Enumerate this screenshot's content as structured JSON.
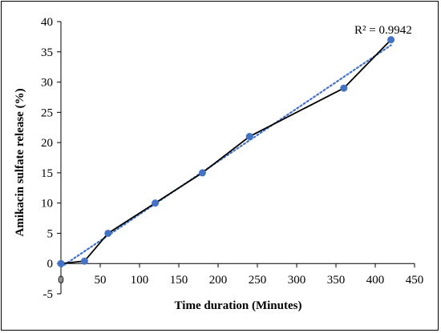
{
  "chart_data": {
    "type": "line",
    "title": "",
    "xlabel": "Time duration (Minutes)",
    "ylabel": "Amikacin sulfate release (%)",
    "xlim": [
      0,
      450
    ],
    "ylim": [
      -5,
      40
    ],
    "xticks": [
      0,
      50,
      100,
      150,
      200,
      250,
      300,
      350,
      400,
      450
    ],
    "yticks": [
      -5,
      0,
      5,
      10,
      15,
      20,
      25,
      30,
      35,
      40
    ],
    "grid": false,
    "legend": "none",
    "series": [
      {
        "x": [
          0,
          30,
          60,
          120,
          180,
          240,
          360,
          420
        ],
        "y": [
          0,
          0.4,
          5,
          10,
          15,
          21,
          29,
          37
        ],
        "line_color": "#000000",
        "marker_color": "#4472C4"
      }
    ],
    "trendline": {
      "style": "dotted",
      "color": "#4472C4",
      "x": [
        0,
        420
      ],
      "y": [
        -0.6,
        36.1
      ]
    },
    "annotation": "R² = 0.9942"
  }
}
